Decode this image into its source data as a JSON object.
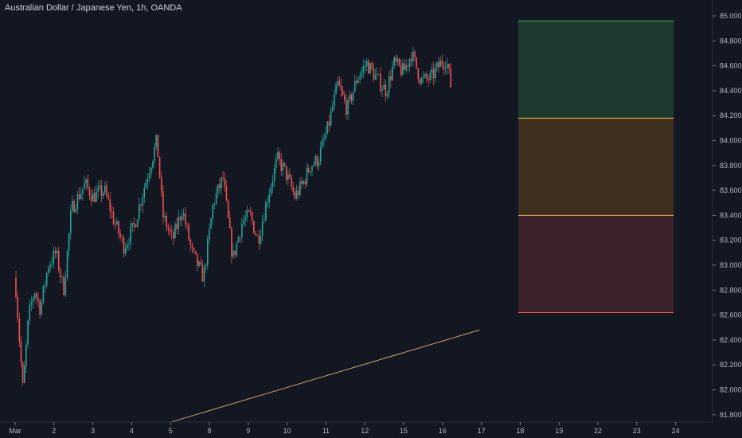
{
  "chart_data": {
    "type": "candlestick",
    "title": "Australian Dollar / Japanese Yen, 1h, OANDA",
    "x_ticks": [
      {
        "label": "Mar",
        "day": 0
      },
      {
        "label": "2",
        "day": 1
      },
      {
        "label": "3",
        "day": 2
      },
      {
        "label": "4",
        "day": 3
      },
      {
        "label": "5",
        "day": 4
      },
      {
        "label": "8",
        "day": 5
      },
      {
        "label": "9",
        "day": 6
      },
      {
        "label": "10",
        "day": 7
      },
      {
        "label": "11",
        "day": 8
      },
      {
        "label": "12",
        "day": 9
      },
      {
        "label": "15",
        "day": 10
      },
      {
        "label": "16",
        "day": 11
      },
      {
        "label": "17",
        "day": 12
      },
      {
        "label": "18",
        "day": 13
      },
      {
        "label": "19",
        "day": 14
      },
      {
        "label": "22",
        "day": 15
      },
      {
        "label": "23",
        "day": 16
      },
      {
        "label": "24",
        "day": 17
      }
    ],
    "y_ticks": [
      "85.000",
      "84.800",
      "84.600",
      "84.400",
      "84.200",
      "84.000",
      "83.800",
      "83.600",
      "83.400",
      "83.200",
      "83.000",
      "82.800",
      "82.600",
      "82.400",
      "82.200",
      "82.000",
      "81.800"
    ],
    "ylim": [
      81.75,
      85.05
    ],
    "colors": {
      "up": "#26a69a",
      "down": "#ef5350",
      "trendline": "#c9a26a"
    },
    "price_path": [
      [
        0.0,
        82.9
      ],
      [
        0.2,
        82.0
      ],
      [
        0.35,
        82.6
      ],
      [
        0.5,
        82.8
      ],
      [
        0.65,
        82.65
      ],
      [
        0.85,
        83.0
      ],
      [
        1.05,
        83.1
      ],
      [
        1.25,
        82.8
      ],
      [
        1.45,
        83.45
      ],
      [
        1.8,
        83.65
      ],
      [
        2.0,
        83.55
      ],
      [
        2.3,
        83.6
      ],
      [
        2.55,
        83.35
      ],
      [
        2.8,
        83.15
      ],
      [
        3.05,
        83.3
      ],
      [
        3.3,
        83.6
      ],
      [
        3.65,
        84.0
      ],
      [
        3.8,
        83.4
      ],
      [
        4.05,
        83.2
      ],
      [
        4.3,
        83.45
      ],
      [
        4.55,
        83.1
      ],
      [
        4.85,
        82.9
      ],
      [
        5.1,
        83.5
      ],
      [
        5.35,
        83.7
      ],
      [
        5.6,
        83.05
      ],
      [
        5.85,
        83.35
      ],
      [
        6.05,
        83.4
      ],
      [
        6.25,
        83.2
      ],
      [
        6.5,
        83.55
      ],
      [
        6.75,
        83.85
      ],
      [
        6.95,
        83.75
      ],
      [
        7.2,
        83.55
      ],
      [
        7.4,
        83.65
      ],
      [
        7.6,
        83.8
      ],
      [
        7.8,
        83.85
      ],
      [
        8.05,
        84.1
      ],
      [
        8.3,
        84.45
      ],
      [
        8.55,
        84.25
      ],
      [
        8.8,
        84.5
      ],
      [
        9.05,
        84.62
      ],
      [
        9.3,
        84.5
      ],
      [
        9.55,
        84.4
      ],
      [
        9.75,
        84.62
      ],
      [
        10.0,
        84.55
      ],
      [
        10.2,
        84.7
      ],
      [
        10.45,
        84.48
      ],
      [
        10.7,
        84.5
      ],
      [
        10.95,
        84.62
      ],
      [
        11.1,
        84.65
      ],
      [
        11.22,
        84.43
      ]
    ],
    "risk_reward": {
      "x_start_day": 12.95,
      "x_end_day": 16.95,
      "stop": 82.62,
      "entry": 83.4,
      "mid": 84.18,
      "target": 84.96,
      "colors": {
        "top_fill": "#1e3a2f",
        "top_line": "#4caf50",
        "mid_fill": "#3d3020",
        "mid_line": "#ffb74d",
        "bot_fill": "#3b2129",
        "bot_line": "#ef5350"
      }
    },
    "trendline": {
      "from": [
        4.0,
        81.74
      ],
      "to": [
        11.95,
        82.48
      ]
    }
  }
}
